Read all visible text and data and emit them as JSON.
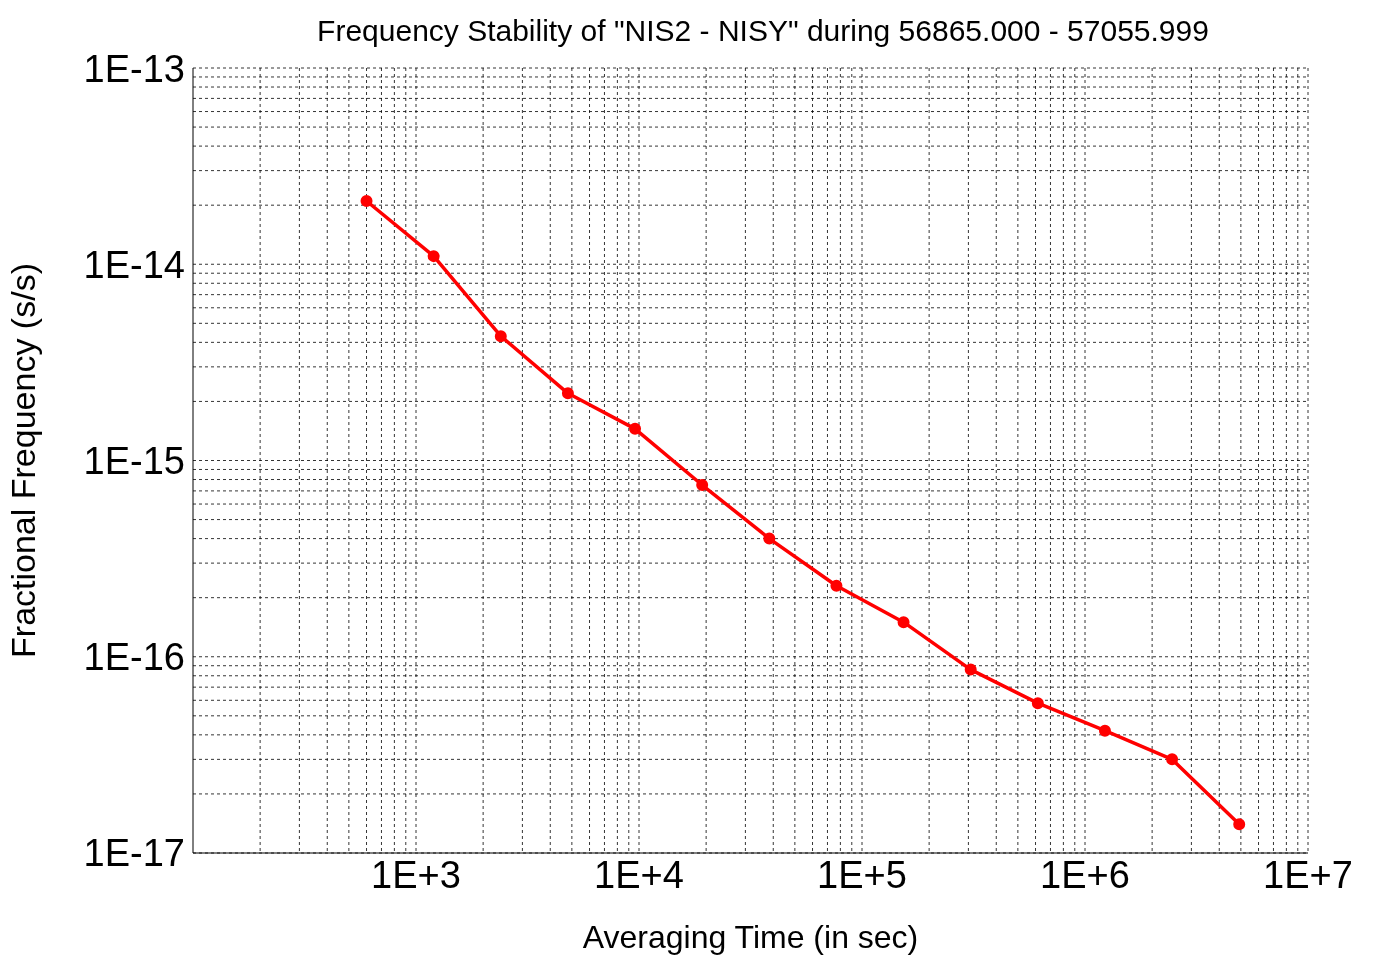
{
  "chart_data": {
    "type": "line",
    "title": "Frequency Stability of \"NIS2 - NISY\" during 56865.000 - 57055.999",
    "xlabel": "Averaging Time (in sec)",
    "ylabel": "Fractional Frequency (s/s)",
    "x": [
      600,
      1200,
      2400,
      4800,
      9600,
      19200,
      38400,
      76800,
      153600,
      307200,
      614400,
      1228800,
      2457600,
      4915200
    ],
    "series": [
      {
        "color": "#ff0000",
        "values": [
          2.1e-14,
          1.1e-14,
          4.3e-15,
          2.2e-15,
          1.45e-15,
          7.5e-16,
          4e-16,
          2.3e-16,
          1.5e-16,
          8.6e-17,
          5.8e-17,
          4.2e-17,
          3e-17,
          1.4e-17
        ]
      }
    ],
    "log": "xy",
    "grid": true,
    "marker": "circle",
    "line_style": "solid",
    "xlim": [
      100,
      10000000
    ],
    "xticks": [
      {
        "value": 200,
        "label": null
      },
      {
        "value": 300,
        "label": null
      },
      {
        "value": 400,
        "label": null
      },
      {
        "value": 500,
        "label": null
      },
      {
        "value": 600,
        "label": null
      },
      {
        "value": 700,
        "label": null
      },
      {
        "value": 800,
        "label": null
      },
      {
        "value": 900,
        "label": null
      },
      {
        "value": 1000,
        "label": "1E+3"
      },
      {
        "value": 2000,
        "label": null
      },
      {
        "value": 3000,
        "label": null
      },
      {
        "value": 4000,
        "label": null
      },
      {
        "value": 5000,
        "label": null
      },
      {
        "value": 6000,
        "label": null
      },
      {
        "value": 7000,
        "label": null
      },
      {
        "value": 8000,
        "label": null
      },
      {
        "value": 9000,
        "label": null
      },
      {
        "value": 10000,
        "label": "1E+4"
      },
      {
        "value": 20000,
        "label": null
      },
      {
        "value": 30000,
        "label": null
      },
      {
        "value": 40000,
        "label": null
      },
      {
        "value": 50000,
        "label": null
      },
      {
        "value": 60000,
        "label": null
      },
      {
        "value": 70000,
        "label": null
      },
      {
        "value": 80000,
        "label": null
      },
      {
        "value": 90000,
        "label": null
      },
      {
        "value": 100000,
        "label": "1E+5"
      },
      {
        "value": 200000,
        "label": null
      },
      {
        "value": 300000,
        "label": null
      },
      {
        "value": 400000,
        "label": null
      },
      {
        "value": 500000,
        "label": null
      },
      {
        "value": 600000,
        "label": null
      },
      {
        "value": 700000,
        "label": null
      },
      {
        "value": 800000,
        "label": null
      },
      {
        "value": 900000,
        "label": null
      },
      {
        "value": 1000000,
        "label": "1E+6"
      },
      {
        "value": 2000000,
        "label": null
      },
      {
        "value": 3000000,
        "label": null
      },
      {
        "value": 4000000,
        "label": null
      },
      {
        "value": 5000000,
        "label": null
      },
      {
        "value": 6000000,
        "label": null
      },
      {
        "value": 7000000,
        "label": null
      },
      {
        "value": 8000000,
        "label": null
      },
      {
        "value": 9000000,
        "label": null
      },
      {
        "value": 10000000,
        "label": "1E+7"
      }
    ],
    "ylim": [
      1e-17,
      1e-13
    ],
    "yticks": [
      {
        "value": 1e-17,
        "label": "1E-17"
      },
      {
        "value": 2e-17,
        "label": null
      },
      {
        "value": 3e-17,
        "label": null
      },
      {
        "value": 4e-17,
        "label": null
      },
      {
        "value": 5e-17,
        "label": null
      },
      {
        "value": 6e-17,
        "label": null
      },
      {
        "value": 7e-17,
        "label": null
      },
      {
        "value": 8e-17,
        "label": null
      },
      {
        "value": 9e-17,
        "label": null
      },
      {
        "value": 1e-16,
        "label": "1E-16"
      },
      {
        "value": 2e-16,
        "label": null
      },
      {
        "value": 3e-16,
        "label": null
      },
      {
        "value": 4e-16,
        "label": null
      },
      {
        "value": 5e-16,
        "label": null
      },
      {
        "value": 6e-16,
        "label": null
      },
      {
        "value": 7e-16,
        "label": null
      },
      {
        "value": 8e-16,
        "label": null
      },
      {
        "value": 9e-16,
        "label": null
      },
      {
        "value": 1e-15,
        "label": "1E-15"
      },
      {
        "value": 2e-15,
        "label": null
      },
      {
        "value": 3e-15,
        "label": null
      },
      {
        "value": 4e-15,
        "label": null
      },
      {
        "value": 5e-15,
        "label": null
      },
      {
        "value": 6e-15,
        "label": null
      },
      {
        "value": 7e-15,
        "label": null
      },
      {
        "value": 8e-15,
        "label": null
      },
      {
        "value": 9e-15,
        "label": null
      },
      {
        "value": 1e-14,
        "label": "1E-14"
      },
      {
        "value": 2e-14,
        "label": null
      },
      {
        "value": 3e-14,
        "label": null
      },
      {
        "value": 4e-14,
        "label": null
      },
      {
        "value": 5e-14,
        "label": null
      },
      {
        "value": 6e-14,
        "label": null
      },
      {
        "value": 7e-14,
        "label": null
      },
      {
        "value": 8e-14,
        "label": null
      },
      {
        "value": 9e-14,
        "label": null
      },
      {
        "value": 1e-13,
        "label": "1E-13"
      }
    ]
  }
}
